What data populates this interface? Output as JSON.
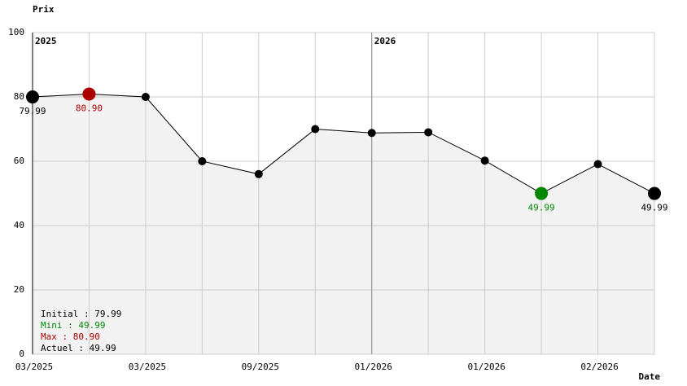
{
  "chart_data": {
    "type": "line",
    "y_label": "Prix",
    "x_label": "Date",
    "categories": [
      "03/2025",
      null,
      "03/2025",
      null,
      "09/2025",
      null,
      "01/2026",
      null,
      "01/2026",
      null,
      "02/2026",
      null
    ],
    "series": [
      {
        "color": "#000000",
        "values": [
          79.99,
          80.9,
          80,
          60,
          56,
          70,
          68.8,
          69,
          60.2,
          49.99,
          59.1,
          49.99
        ],
        "value_labels": [
          "79.99",
          "80.90",
          null,
          null,
          null,
          null,
          null,
          null,
          null,
          "49.99",
          null,
          "49.99"
        ],
        "point_colors": [
          "#000000",
          "#aa0000",
          "#000000",
          "#000000",
          "#000000",
          "#000000",
          "#000000",
          "#000000",
          "#000000",
          "#008800",
          "#000000",
          "#000000"
        ]
      }
    ],
    "year_markers": [
      "2025",
      "2026"
    ],
    "summary": [
      {
        "text": "Initial : 79.99",
        "color": "#000000"
      },
      {
        "text": "Mini : 49.99",
        "color": "#008800"
      },
      {
        "text": "Max : 80.90",
        "color": "#aa0000"
      },
      {
        "text": "Actuel : 49.99",
        "color": "#000000"
      }
    ],
    "ylim": [
      0,
      100
    ],
    "yticks": [
      0,
      20,
      40,
      60,
      80,
      100
    ],
    "grid": true,
    "area_color": "#f2f2f2"
  }
}
